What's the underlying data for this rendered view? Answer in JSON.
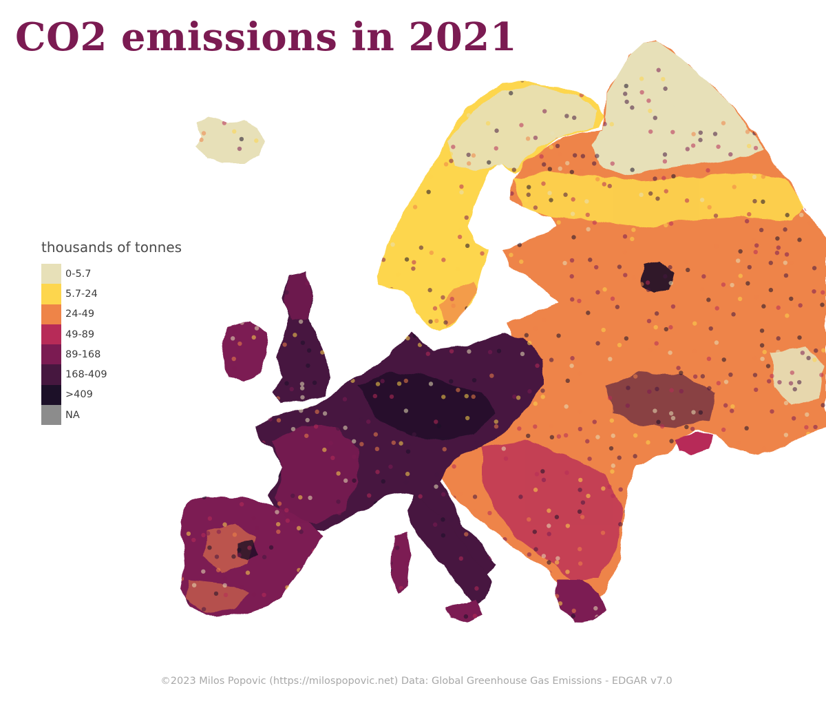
{
  "title": "CO2 emissions in 2021",
  "legend": {
    "title": "thousands of tonnes",
    "items": [
      {
        "label": "0-5.7",
        "color": "#e7e0b8"
      },
      {
        "label": "5.7-24",
        "color": "#fdd64d"
      },
      {
        "label": "24-49",
        "color": "#ee8448"
      },
      {
        "label": "49-89",
        "color": "#b72b58"
      },
      {
        "label": "89-168",
        "color": "#7b1b52"
      },
      {
        "label": "168-409",
        "color": "#46173f"
      },
      {
        "label": ">409",
        "color": "#1c1028"
      },
      {
        "label": "NA",
        "color": "#8c8c8c"
      }
    ]
  },
  "footer": "©2023 Milos Popovic (https://milospopovic.net) Data: Global Greenhouse Gas Emissions - EDGAR v7.0"
}
